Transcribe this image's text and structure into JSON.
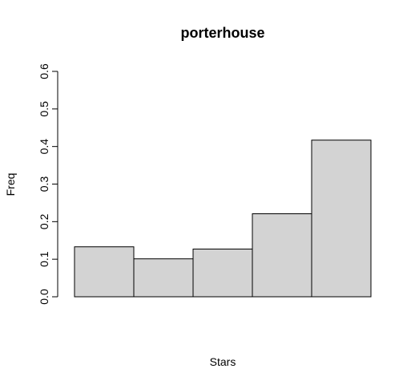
{
  "chart_data": {
    "type": "bar",
    "title": "porterhouse",
    "xlabel": "Stars",
    "ylabel": "Freq",
    "categories": [
      "",
      "",
      "",
      "",
      ""
    ],
    "values": [
      0.133,
      0.101,
      0.127,
      0.221,
      0.417
    ],
    "ylim": [
      0,
      0.6
    ],
    "yticks": [
      0.0,
      0.1,
      0.2,
      0.3,
      0.4,
      0.5,
      0.6
    ],
    "ytick_labels": [
      "0.0",
      "0.1",
      "0.2",
      "0.3",
      "0.4",
      "0.5",
      "0.6"
    ],
    "grid": false,
    "bar_color": "#d3d3d3",
    "edge_color": "#000000"
  }
}
